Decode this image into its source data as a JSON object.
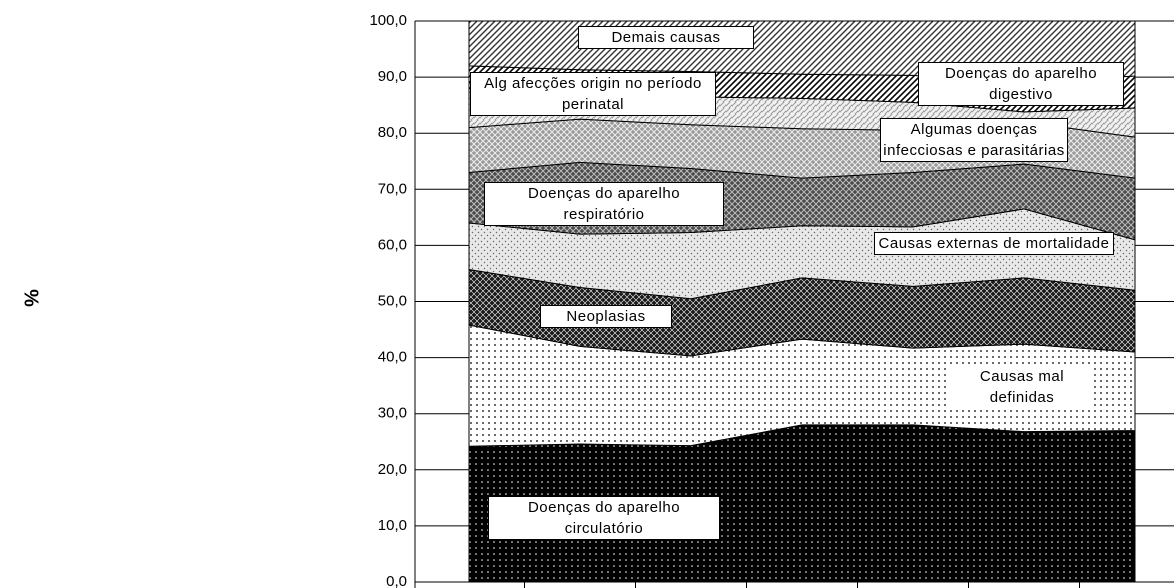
{
  "chart_data": {
    "type": "stacked_area",
    "y_label": "%",
    "categories": [
      null,
      null,
      null,
      null,
      null,
      null,
      null
    ],
    "ylim": [
      0,
      100
    ],
    "yticks": [
      {
        "value": 0,
        "label": "0,0"
      },
      {
        "value": 10,
        "label": "10,0"
      },
      {
        "value": 20,
        "label": "20,0"
      },
      {
        "value": 30,
        "label": "30,0"
      },
      {
        "value": 40,
        "label": "40,0"
      },
      {
        "value": 50,
        "label": "50,0"
      },
      {
        "value": 60,
        "label": "60,0"
      },
      {
        "value": 70,
        "label": "70,0"
      },
      {
        "value": 80,
        "label": "80,0"
      },
      {
        "value": 90,
        "label": "90,0"
      },
      {
        "value": 100,
        "label": "100,0"
      }
    ],
    "grid": true,
    "series": [
      {
        "name": "Doenças do aparelho circulatório",
        "color": "#000000",
        "values": [
          24.2,
          24.6,
          24.3,
          28.0,
          28.0,
          26.8,
          27.0
        ]
      },
      {
        "name": "Causas mal definidas",
        "color": "#ffffff",
        "values": [
          21.6,
          17.4,
          16.0,
          15.3,
          13.7,
          15.6,
          14.0
        ]
      },
      {
        "name": "Neoplasias",
        "color": "#1a1a1a",
        "values": [
          9.9,
          10.5,
          10.2,
          10.9,
          11.0,
          11.8,
          11.0
        ]
      },
      {
        "name": "Causas externas de mortalidade",
        "color": "#e8e8e8",
        "values": [
          8.3,
          9.5,
          11.8,
          9.3,
          10.6,
          12.3,
          9.0
        ]
      },
      {
        "name": "Doenças do aparelho respiratório",
        "color": "#4a4a4a",
        "values": [
          9.0,
          12.8,
          11.4,
          8.5,
          9.7,
          8.0,
          11.0
        ]
      },
      {
        "name": "Algumas doenças infecciosas e parasitárias",
        "color": "#9a9a9a",
        "values": [
          8.0,
          7.7,
          7.8,
          8.8,
          7.5,
          7.5,
          7.3
        ]
      },
      {
        "name": "Alg afecções origin no período perinatal",
        "color": "#f2f2f2",
        "values": [
          7.0,
          4.5,
          5.0,
          5.4,
          5.0,
          1.8,
          5.2
        ]
      },
      {
        "name": "Doenças do aparelho digestivo",
        "color": "#ffffff",
        "values": [
          4.0,
          4.3,
          4.5,
          4.3,
          4.8,
          5.2,
          5.7
        ]
      },
      {
        "name": "Demais causas",
        "color": "#ffffff",
        "values": [
          8.0,
          8.7,
          9.0,
          9.5,
          9.7,
          11.0,
          9.8
        ]
      }
    ]
  }
}
